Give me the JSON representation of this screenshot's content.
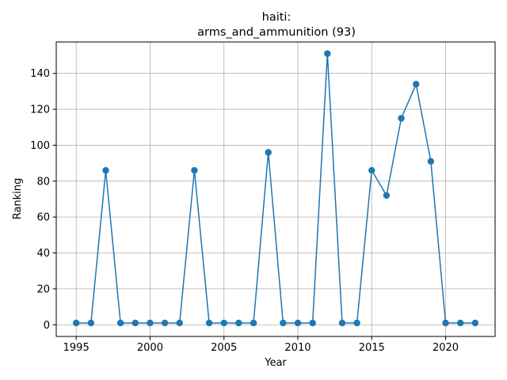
{
  "chart_data": {
    "type": "line",
    "title_line1": "haiti:",
    "title_line2": "arms_and_ammunition (93)",
    "xlabel": "Year",
    "ylabel": "Ranking",
    "xlim": [
      1993.65,
      1994.65
    ],
    "x_range": [
      1993.65,
      2023.35
    ],
    "y_range": [
      -6.5,
      157.5
    ],
    "xticks": [
      1995,
      2000,
      2005,
      2010,
      2015,
      2020
    ],
    "yticks": [
      0,
      20,
      40,
      60,
      80,
      100,
      120,
      140
    ],
    "grid": true,
    "line_color": "#1f77b4",
    "series": [
      {
        "x": [
          1995,
          1996,
          1997,
          1998,
          1999,
          2000,
          2001,
          2002,
          2003,
          2004,
          2005,
          2006,
          2007,
          2008,
          2009,
          2010,
          2011,
          2012,
          2013,
          2014,
          2015,
          2016,
          2017,
          2018,
          2019,
          2020,
          2021,
          2022
        ],
        "values": [
          1,
          1,
          86,
          1,
          1,
          1,
          1,
          1,
          86,
          1,
          1,
          1,
          1,
          96,
          1,
          1,
          1,
          151,
          1,
          1,
          86,
          72,
          115,
          134,
          91,
          1,
          1,
          1
        ]
      }
    ]
  }
}
